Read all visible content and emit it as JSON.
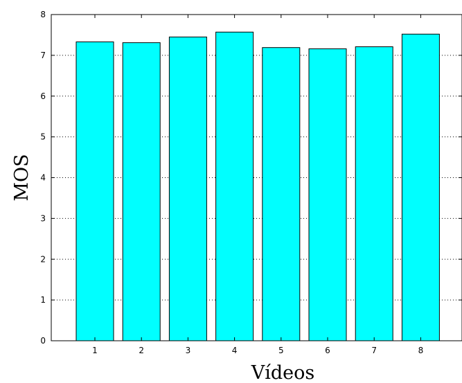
{
  "chart_data": {
    "type": "bar",
    "title": "",
    "xlabel": "Vídeos",
    "ylabel": "MOS",
    "categories": [
      "1",
      "2",
      "3",
      "4",
      "5",
      "6",
      "7",
      "8"
    ],
    "values": [
      7.33,
      7.31,
      7.45,
      7.57,
      7.19,
      7.16,
      7.21,
      7.52
    ],
    "ylim": [
      0,
      8
    ],
    "yticks": [
      "0",
      "1",
      "2",
      "3",
      "4",
      "5",
      "6",
      "7",
      "8"
    ],
    "grid": "y-dotted",
    "bar_color": "#00ffff",
    "edge_color": "#000000"
  }
}
